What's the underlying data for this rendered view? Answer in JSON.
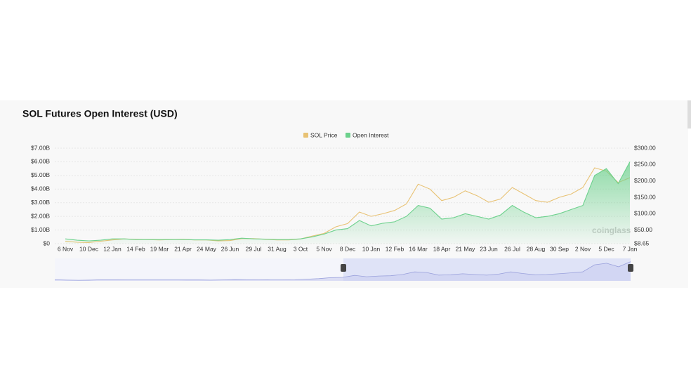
{
  "chart_data": {
    "type": "line",
    "title": "SOL Futures Open Interest (USD)",
    "watermark": "coinglass",
    "categories": [
      "6 Nov",
      null,
      "10 Dec",
      null,
      "12 Jan",
      null,
      "14 Feb",
      null,
      "19 Mar",
      null,
      "21 Apr",
      null,
      "24 May",
      null,
      "26 Jun",
      null,
      "29 Jul",
      null,
      "31 Aug",
      null,
      "3 Oct",
      null,
      "5 Nov",
      null,
      "8 Dec",
      null,
      "10 Jan",
      null,
      "12 Feb",
      null,
      "16 Mar",
      null,
      "18 Apr",
      null,
      "21 May",
      null,
      "23 Jun",
      null,
      "26 Jul",
      null,
      "28 Aug",
      null,
      "30 Sep",
      null,
      "2 Nov",
      null,
      "5 Dec",
      null,
      "7 Jan"
    ],
    "series": [
      {
        "name": "SOL Price",
        "color": "#e8c274",
        "axis": "y2",
        "values": [
          16,
          13,
          12,
          16,
          20,
          23,
          22,
          21,
          20,
          21,
          22,
          20,
          20,
          17,
          18,
          24,
          24,
          22,
          20,
          20,
          23,
          32,
          40,
          60,
          70,
          105,
          92,
          100,
          110,
          130,
          190,
          175,
          140,
          150,
          170,
          155,
          135,
          145,
          180,
          160,
          140,
          135,
          150,
          160,
          180,
          240,
          230,
          195,
          210
        ]
      },
      {
        "name": "Open Interest",
        "color": "#6cd18c",
        "values": [
          350000000,
          250000000,
          200000000,
          250000000,
          350000000,
          350000000,
          300000000,
          300000000,
          300000000,
          300000000,
          300000000,
          280000000,
          280000000,
          250000000,
          300000000,
          400000000,
          350000000,
          330000000,
          300000000,
          300000000,
          350000000,
          500000000,
          700000000,
          1000000000,
          1100000000,
          1700000000,
          1300000000,
          1500000000,
          1600000000,
          2000000000,
          2800000000,
          2600000000,
          1800000000,
          1900000000,
          2200000000,
          2000000000,
          1800000000,
          2100000000,
          2800000000,
          2300000000,
          1900000000,
          2000000000,
          2200000000,
          2500000000,
          2800000000,
          5000000000,
          5500000000,
          4400000000,
          6000000000
        ]
      }
    ],
    "ylim": [
      0,
      7000000000
    ],
    "yticks": [
      {
        "value": 0,
        "label": "$0"
      },
      {
        "value": 1000000000,
        "label": "$1.00B"
      },
      {
        "value": 2000000000,
        "label": "$2.00B"
      },
      {
        "value": 3000000000,
        "label": "$3.00B"
      },
      {
        "value": 4000000000,
        "label": "$4.00B"
      },
      {
        "value": 5000000000,
        "label": "$5.00B"
      },
      {
        "value": 6000000000,
        "label": "$6.00B"
      },
      {
        "value": 7000000000,
        "label": "$7.00B"
      }
    ],
    "y2lim": [
      8.65,
      300
    ],
    "y2ticks": [
      {
        "value": 8.65,
        "label": "$8.65"
      },
      {
        "value": 50,
        "label": "$50.00"
      },
      {
        "value": 100,
        "label": "$100.00"
      },
      {
        "value": 150,
        "label": "$150.00"
      },
      {
        "value": 200,
        "label": "$200.00"
      },
      {
        "value": 250,
        "label": "$250.00"
      },
      {
        "value": 300,
        "label": "$300.00"
      }
    ],
    "grid": true,
    "legend": "top"
  }
}
